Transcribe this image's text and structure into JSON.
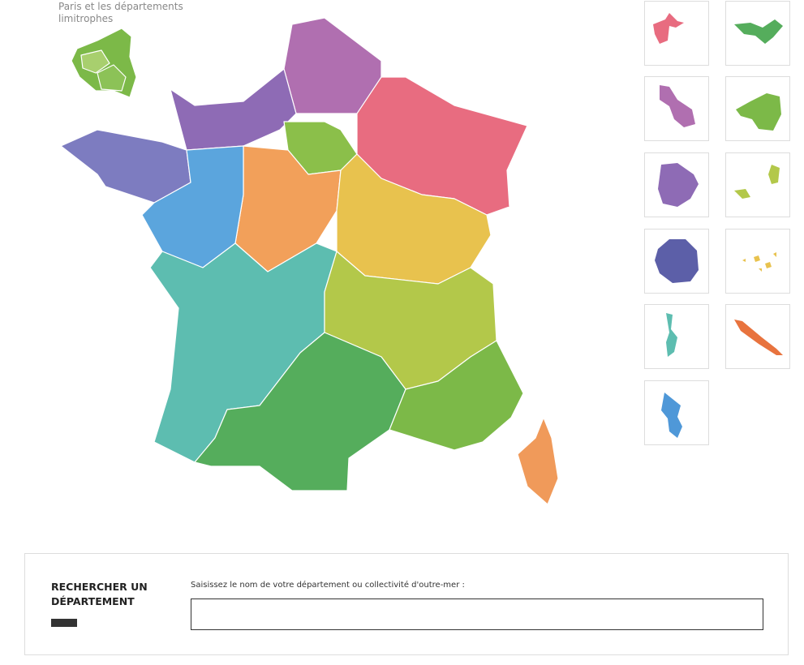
{
  "paris_inset": {
    "label": "Paris et les départements limitrophes"
  },
  "search": {
    "title": "RECHERCHER UN DÉPARTEMENT",
    "prompt": "Saisissez le nom de votre département ou collectivité d'outre-mer :"
  }
}
